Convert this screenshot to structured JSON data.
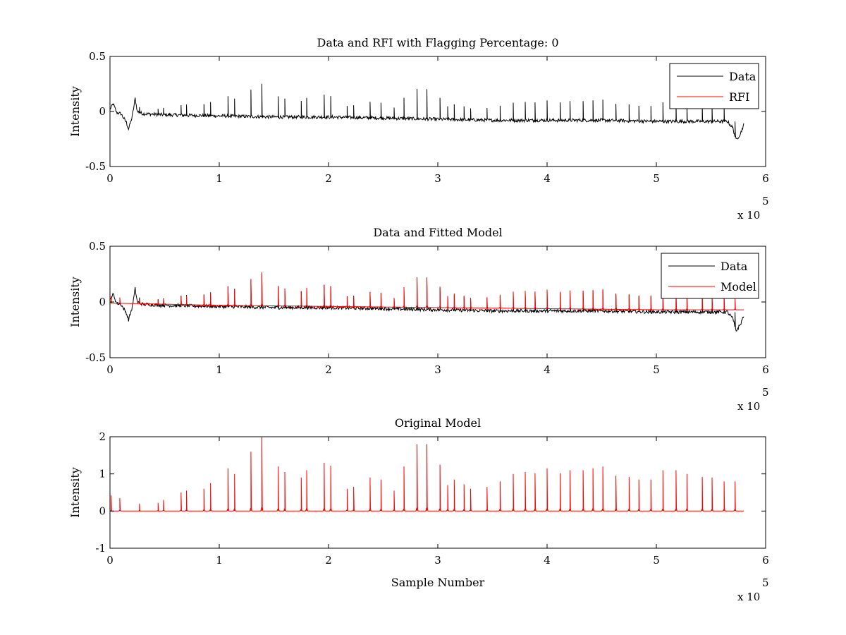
{
  "chart_data": [
    {
      "type": "line",
      "title": "Data and RFI with Flagging Percentage: 0",
      "xlabel": "",
      "ylabel": "Intensity",
      "xlim": [
        0,
        600000
      ],
      "ylim": [
        -0.5,
        0.5
      ],
      "x_ticks": [
        "0",
        "1",
        "2",
        "3",
        "4",
        "5",
        "6"
      ],
      "y_ticks": [
        "-0.5",
        "0",
        "0.5"
      ],
      "x_exponent_base": "x 10",
      "x_exponent_power": "5",
      "legend_position": "top-right",
      "series": [
        {
          "name": "Data",
          "color": "#000000",
          "role": "data",
          "points": [
            [
              0,
              0.02
            ],
            [
              3000,
              0.07
            ],
            [
              6000,
              -0.01
            ],
            [
              10000,
              -0.02
            ],
            [
              15000,
              -0.1
            ],
            [
              17000,
              -0.16
            ],
            [
              20000,
              -0.06
            ],
            [
              22000,
              0.05
            ],
            [
              23000,
              0.12
            ],
            [
              25000,
              0.0
            ],
            [
              30000,
              -0.02
            ],
            [
              50000,
              -0.03
            ],
            [
              100000,
              -0.04
            ],
            [
              150000,
              -0.05
            ],
            [
              200000,
              -0.05
            ],
            [
              250000,
              -0.06
            ],
            [
              300000,
              -0.07
            ],
            [
              350000,
              -0.08
            ],
            [
              400000,
              -0.08
            ],
            [
              450000,
              -0.08
            ],
            [
              500000,
              -0.09
            ],
            [
              550000,
              -0.09
            ],
            [
              565000,
              -0.09
            ],
            [
              570000,
              -0.15
            ],
            [
              573000,
              -0.26
            ],
            [
              577000,
              -0.2
            ],
            [
              580000,
              -0.12
            ]
          ]
        },
        {
          "name": "RFI",
          "color": "#ff0000",
          "role": "rfi",
          "points": []
        }
      ]
    },
    {
      "type": "line",
      "title": "Data and Fitted Model",
      "xlabel": "",
      "ylabel": "Intensity",
      "xlim": [
        0,
        600000
      ],
      "ylim": [
        -0.5,
        0.5
      ],
      "x_ticks": [
        "0",
        "1",
        "2",
        "3",
        "4",
        "5",
        "6"
      ],
      "y_ticks": [
        "-0.5",
        "0",
        "0.5"
      ],
      "x_exponent_base": "x 10",
      "x_exponent_power": "5",
      "legend_position": "top-right",
      "series": [
        {
          "name": "Data",
          "color": "#000000",
          "role": "data",
          "points": [
            [
              0,
              0.02
            ],
            [
              3000,
              0.07
            ],
            [
              6000,
              -0.01
            ],
            [
              10000,
              -0.02
            ],
            [
              15000,
              -0.1
            ],
            [
              17000,
              -0.16
            ],
            [
              20000,
              -0.06
            ],
            [
              22000,
              0.05
            ],
            [
              23000,
              0.12
            ],
            [
              25000,
              0.0
            ],
            [
              30000,
              -0.02
            ],
            [
              50000,
              -0.03
            ],
            [
              100000,
              -0.04
            ],
            [
              150000,
              -0.05
            ],
            [
              200000,
              -0.05
            ],
            [
              250000,
              -0.06
            ],
            [
              300000,
              -0.07
            ],
            [
              350000,
              -0.08
            ],
            [
              400000,
              -0.08
            ],
            [
              450000,
              -0.08
            ],
            [
              500000,
              -0.09
            ],
            [
              550000,
              -0.09
            ],
            [
              565000,
              -0.09
            ],
            [
              570000,
              -0.15
            ],
            [
              573000,
              -0.26
            ],
            [
              577000,
              -0.2
            ],
            [
              580000,
              -0.12
            ]
          ]
        },
        {
          "name": "Model",
          "color": "#ff0000",
          "role": "model",
          "scale": 0.15,
          "baseline": [
            [
              0,
              -0.01
            ],
            [
              100000,
              -0.03
            ],
            [
              200000,
              -0.04
            ],
            [
              300000,
              -0.05
            ],
            [
              400000,
              -0.06
            ],
            [
              500000,
              -0.07
            ],
            [
              580000,
              -0.07
            ]
          ]
        }
      ]
    },
    {
      "type": "line",
      "title": "Original Model",
      "xlabel": "Sample Number",
      "ylabel": "Intensity",
      "xlim": [
        0,
        600000
      ],
      "ylim": [
        -1,
        2
      ],
      "x_ticks": [
        "0",
        "1",
        "2",
        "3",
        "4",
        "5",
        "6"
      ],
      "y_ticks": [
        "-1",
        "0",
        "1",
        "2"
      ],
      "x_exponent_base": "x 10",
      "x_exponent_power": "5",
      "series": [
        {
          "name": "Model",
          "color": "#ff0000",
          "role": "model",
          "scale": 1.0,
          "baseline": [
            [
              1000,
              0.0
            ],
            [
              580000,
              0.0
            ]
          ]
        }
      ]
    }
  ],
  "model_peaks": [
    [
      1000,
      0.42
    ],
    [
      9000,
      0.35
    ],
    [
      27000,
      0.2
    ],
    [
      44000,
      0.22
    ],
    [
      49000,
      0.3
    ],
    [
      65000,
      0.5
    ],
    [
      70000,
      0.55
    ],
    [
      86000,
      0.6
    ],
    [
      92000,
      0.75
    ],
    [
      108000,
      1.15
    ],
    [
      114000,
      1.0
    ],
    [
      129000,
      1.6
    ],
    [
      139000,
      2.0
    ],
    [
      154000,
      1.2
    ],
    [
      160000,
      1.05
    ],
    [
      175000,
      0.9
    ],
    [
      180000,
      1.1
    ],
    [
      196000,
      1.3
    ],
    [
      202000,
      1.22
    ],
    [
      217000,
      0.6
    ],
    [
      223000,
      0.65
    ],
    [
      238000,
      0.9
    ],
    [
      248000,
      0.85
    ],
    [
      260000,
      0.55
    ],
    [
      269000,
      1.2
    ],
    [
      281000,
      1.8
    ],
    [
      290000,
      1.8
    ],
    [
      302000,
      1.25
    ],
    [
      309000,
      0.7
    ],
    [
      315000,
      0.85
    ],
    [
      324000,
      0.72
    ],
    [
      330000,
      0.6
    ],
    [
      345000,
      0.65
    ],
    [
      357000,
      0.8
    ],
    [
      369000,
      1.0
    ],
    [
      380000,
      1.05
    ],
    [
      389000,
      1.02
    ],
    [
      400000,
      1.15
    ],
    [
      412000,
      1.02
    ],
    [
      421000,
      1.1
    ],
    [
      433000,
      1.1
    ],
    [
      442000,
      1.15
    ],
    [
      451000,
      1.2
    ],
    [
      463000,
      0.95
    ],
    [
      475000,
      0.92
    ],
    [
      484000,
      0.85
    ],
    [
      495000,
      0.85
    ],
    [
      506000,
      1.1
    ],
    [
      518000,
      1.1
    ],
    [
      528000,
      1.0
    ],
    [
      542000,
      0.92
    ],
    [
      551000,
      0.9
    ],
    [
      562000,
      0.8
    ],
    [
      572000,
      0.8
    ]
  ]
}
